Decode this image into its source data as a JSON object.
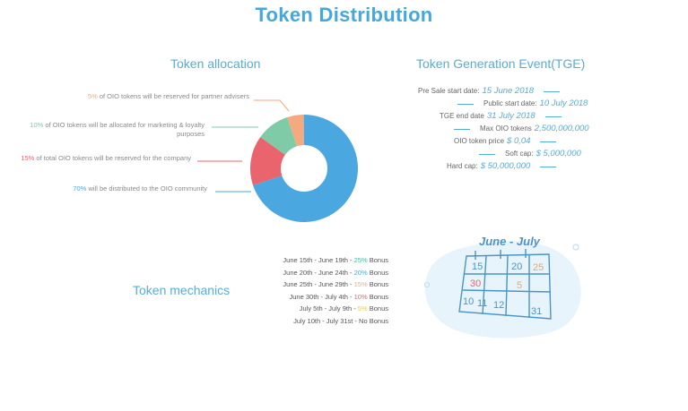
{
  "page": {
    "title": "Token Distribution"
  },
  "allocation": {
    "title": "Token allocation",
    "items": [
      {
        "pct": "5%",
        "text": " of OIO tokens will be reserved for partner advisers",
        "color": "#f5a97f"
      },
      {
        "pct": "10%",
        "text": " of OIO tokens will be allocated for marketing & loyalty purposes",
        "color": "#7fcba8"
      },
      {
        "pct": "15%",
        "text": " of total OIO tokens will be reserved for the company",
        "color": "#e9646d"
      },
      {
        "pct": "70%",
        "text": " will be distributed to the OIO community",
        "color": "#4aa7df"
      }
    ]
  },
  "chart_data": {
    "type": "pie",
    "categories": [
      "partner advisers",
      "marketing & loyalty",
      "company",
      "OIO community"
    ],
    "values": [
      5,
      10,
      15,
      70
    ],
    "colors": [
      "#f5a97f",
      "#7fcba8",
      "#e9646d",
      "#4aa7df"
    ],
    "donut": true
  },
  "tge": {
    "title": "Token Generation Event(TGE)",
    "rows": [
      {
        "label": "Pre Sale start date:",
        "value": "15 June 2018"
      },
      {
        "label": "Public start date:",
        "value": "10 July 2018"
      },
      {
        "label": "TGE end date",
        "value": "31 July 2018"
      },
      {
        "label": "Max OIO tokens",
        "value": "2,500,000,000"
      },
      {
        "label": "OIO token price",
        "value": "$ 0,04"
      },
      {
        "label": "Soft cap:",
        "value": "$ 5,000,000"
      },
      {
        "label": "Hard cap:",
        "value": "$ 50,000,000"
      }
    ]
  },
  "mechanics": {
    "title": "Token mechanics",
    "rows": [
      {
        "range": "June 15th - June 19th - ",
        "pct": "25%",
        "suffix": " Bonus",
        "color": "#3fb8a0"
      },
      {
        "range": "June 20th - June 24th - ",
        "pct": "20%",
        "suffix": " Bonus",
        "color": "#4aa7df"
      },
      {
        "range": "June 25th - June 29th - ",
        "pct": "15%",
        "suffix": " Bonus",
        "color": "#f5a97f"
      },
      {
        "range": "June 30th - July 4th - ",
        "pct": "10%",
        "suffix": " Bonus",
        "color": "#e9646d"
      },
      {
        "range": "July 5th - July 9th - ",
        "pct": "5%",
        "suffix": " Bonus",
        "color": "#f2c15a"
      },
      {
        "range": "July 10th - July 31st - No Bonus",
        "pct": "",
        "suffix": "",
        "color": "#555555"
      }
    ]
  },
  "calendar": {
    "title": "June - July",
    "numbers": [
      "15",
      "20",
      "25",
      "30",
      "5",
      "10",
      "11",
      "12",
      "31"
    ]
  }
}
